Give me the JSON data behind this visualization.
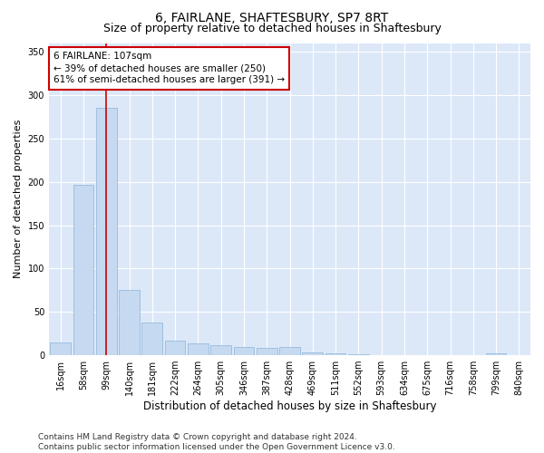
{
  "title": "6, FAIRLANE, SHAFTESBURY, SP7 8RT",
  "subtitle": "Size of property relative to detached houses in Shaftesbury",
  "xlabel": "Distribution of detached houses by size in Shaftesbury",
  "ylabel": "Number of detached properties",
  "bar_color": "#c5d9f0",
  "bar_edge_color": "#8ab4d9",
  "background_color": "#dce8f8",
  "grid_color": "#ffffff",
  "vline_color": "#cc0000",
  "vline_x_index": 2,
  "annotation_line1": "6 FAIRLANE: 107sqm",
  "annotation_line2": "← 39% of detached houses are smaller (250)",
  "annotation_line3": "61% of semi-detached houses are larger (391) →",
  "annotation_box_color": "#cc0000",
  "categories": [
    "16sqm",
    "58sqm",
    "99sqm",
    "140sqm",
    "181sqm",
    "222sqm",
    "264sqm",
    "305sqm",
    "346sqm",
    "387sqm",
    "428sqm",
    "469sqm",
    "511sqm",
    "552sqm",
    "593sqm",
    "634sqm",
    "675sqm",
    "716sqm",
    "758sqm",
    "799sqm",
    "840sqm"
  ],
  "values": [
    15,
    197,
    285,
    75,
    38,
    17,
    14,
    12,
    10,
    8,
    9,
    3,
    2,
    1,
    0,
    0,
    0,
    0,
    0,
    2,
    0
  ],
  "ylim": [
    0,
    360
  ],
  "yticks": [
    0,
    50,
    100,
    150,
    200,
    250,
    300,
    350
  ],
  "footer_text": "Contains HM Land Registry data © Crown copyright and database right 2024.\nContains public sector information licensed under the Open Government Licence v3.0.",
  "title_fontsize": 10,
  "subtitle_fontsize": 9,
  "xlabel_fontsize": 8.5,
  "ylabel_fontsize": 8,
  "tick_fontsize": 7,
  "footer_fontsize": 6.5,
  "annotation_fontsize": 7.5
}
